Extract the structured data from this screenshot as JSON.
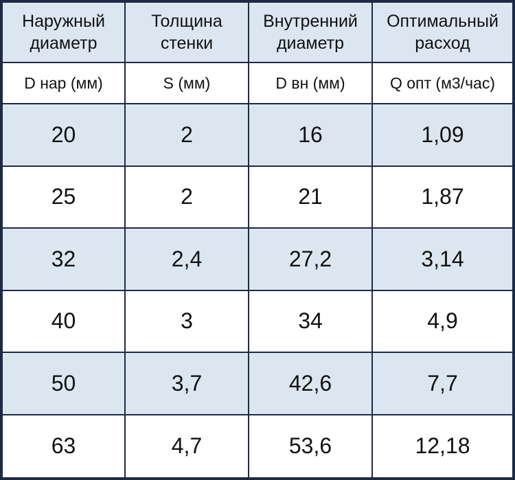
{
  "table": {
    "header": [
      [
        "Наружный\nдиаметр",
        "Толщина\nстенки",
        "Внутренний\nдиаметр",
        "Оптимальный\nрасход"
      ],
      [
        "D нар (мм)",
        "S (мм)",
        "D вн (мм)",
        "Q опт (м3/час)"
      ]
    ],
    "rows": [
      [
        "20",
        "2",
        "16",
        "1,09"
      ],
      [
        "25",
        "2",
        "21",
        "1,87"
      ],
      [
        "32",
        "2,4",
        "27,2",
        "3,14"
      ],
      [
        "40",
        "3",
        "34",
        "4,9"
      ],
      [
        "50",
        "3,7",
        "42,6",
        "7,7"
      ],
      [
        "63",
        "4,7",
        "53,6",
        "12,18"
      ]
    ]
  }
}
